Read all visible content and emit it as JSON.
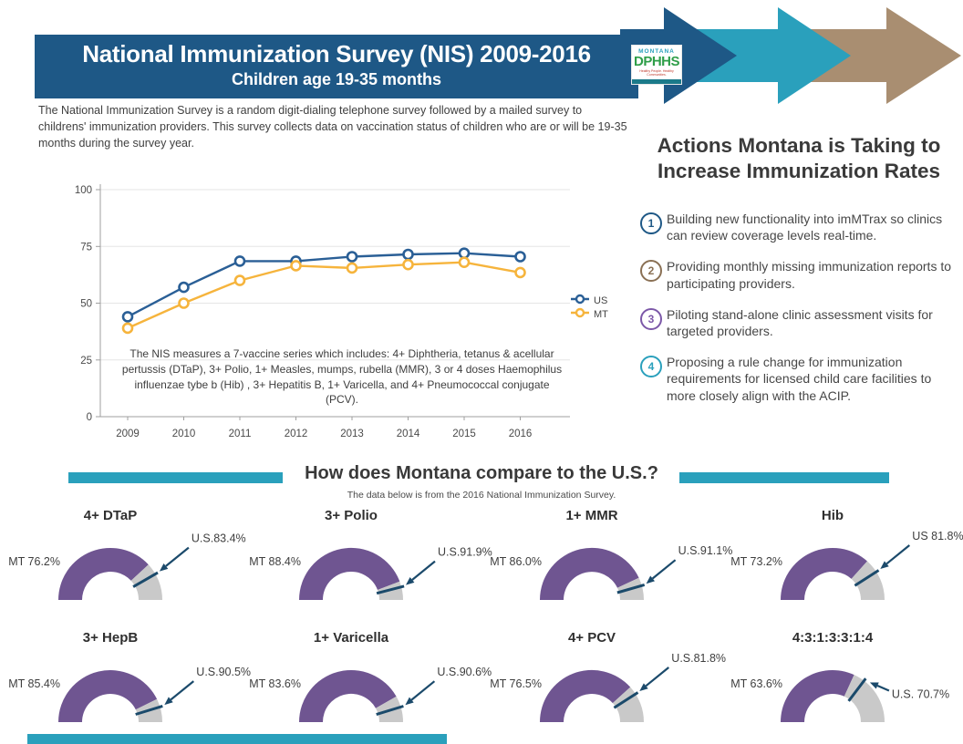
{
  "colors": {
    "header_blue": "#1e5886",
    "teal": "#2aa0bc",
    "tan": "#a98e71",
    "us_line": "#2a5f96",
    "mt_line": "#f6b43c",
    "gauge_purple": "#6f5591",
    "gauge_gray": "#c9c9c9",
    "gauge_marker_navy": "#1b4a6b",
    "badge_colors": [
      "#1e5886",
      "#8a7054",
      "#7c58a8",
      "#2aa0bc"
    ]
  },
  "header": {
    "title": "National Immunization Survey (NIS) 2009-2016",
    "subtitle": "Children age 19-35 months"
  },
  "logo": {
    "state": "MONTANA",
    "agency": "DPHHS",
    "tagline": "Healthy People. Healthy Communities."
  },
  "intro": "The National Immunization Survey is a random digit-dialing telephone survey followed by a mailed survey to childrens' immunization providers. This survey collects data on vaccination status of children who are or will be 19-35 months during the survey year.",
  "chart_data": [
    {
      "type": "line",
      "title": "",
      "x": [
        2009,
        2010,
        2011,
        2012,
        2013,
        2014,
        2015,
        2016
      ],
      "series": [
        {
          "name": "US",
          "values": [
            44,
            57,
            68.5,
            68.5,
            70.5,
            71.5,
            72,
            70.5
          ]
        },
        {
          "name": "MT",
          "values": [
            39,
            50,
            60,
            66.5,
            65.5,
            67,
            68,
            63.5
          ]
        }
      ],
      "ylim": [
        0,
        100
      ],
      "yticks": [
        0,
        25,
        50,
        75,
        100
      ],
      "grid": "horizontal",
      "legend_position": "right",
      "note": "The NIS measures a 7-vaccine series which includes: 4+ Diphtheria, tetanus & acellular pertussis (DTaP), 3+ Polio, 1+ Measles, mumps, rubella (MMR), 3 or 4 doses Haemophilus influenzae tybe b (Hib) , 3+ Hepatitis B, 1+ Varicella, and 4+ Pneumococcal conjugate (PCV)."
    },
    {
      "type": "gauge-comparison",
      "title": "How does Montana compare to the U.S.?",
      "subtitle": "The data below is from the 2016 National Immunization Survey.",
      "unit": "%",
      "gauges": [
        {
          "title": "4+ DTaP",
          "mt": 76.2,
          "us": 83.4,
          "mt_label": "MT 76.2%",
          "us_label": "U.S.83.4%",
          "us_label_placement": "upper"
        },
        {
          "title": "3+ Polio",
          "mt": 88.4,
          "us": 91.9,
          "mt_label": "MT 88.4%",
          "us_label": "U.S.91.9%",
          "us_label_placement": "upper"
        },
        {
          "title": "1+ MMR",
          "mt": 86.0,
          "us": 91.1,
          "mt_label": "MT 86.0%",
          "us_label": "U.S.91.1%",
          "us_label_placement": "upper"
        },
        {
          "title": "Hib",
          "mt": 73.2,
          "us": 81.8,
          "mt_label": "MT 73.2%",
          "us_label": "US 81.8%",
          "us_label_placement": "upper"
        },
        {
          "title": "3+ HepB",
          "mt": 85.4,
          "us": 90.5,
          "mt_label": "MT 85.4%",
          "us_label": "U.S.90.5%",
          "us_label_placement": "upper"
        },
        {
          "title": "1+ Varicella",
          "mt": 83.6,
          "us": 90.6,
          "mt_label": "MT 83.6%",
          "us_label": "U.S.90.6%",
          "us_label_placement": "upper"
        },
        {
          "title": "4+ PCV",
          "mt": 76.5,
          "us": 81.8,
          "mt_label": "MT 76.5%",
          "us_label": "U.S.81.8%",
          "us_label_placement": "upper"
        },
        {
          "title": "4:3:1:3:3:1:4",
          "mt": 63.6,
          "us": 70.7,
          "mt_label": "MT 63.6%",
          "us_label": "U.S. 70.7%",
          "us_label_placement": "lower"
        }
      ]
    }
  ],
  "actions": {
    "title": "Actions Montana is Taking to Increase Immunization Rates",
    "items": [
      {
        "num": "1",
        "text": "Building new functionality into imMTrax so clinics can review coverage levels real-time."
      },
      {
        "num": "2",
        "text": "Providing monthly missing immunization reports to participating providers."
      },
      {
        "num": "3",
        "text": "Piloting stand-alone clinic assessment visits for targeted providers."
      },
      {
        "num": "4",
        "text": "Proposing a rule change for immunization requirements for licensed child care facilities to more closely align with the ACIP."
      }
    ]
  }
}
